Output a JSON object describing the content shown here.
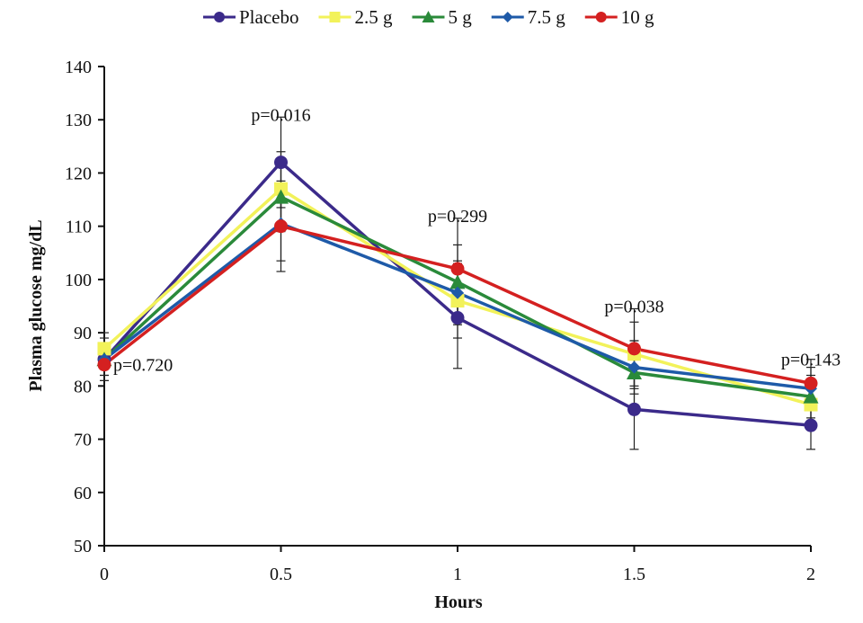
{
  "chart_data": {
    "type": "line",
    "title": "",
    "xlabel": "Hours",
    "ylabel": "Plasma glucose mg/dL",
    "x": [
      0,
      0.5,
      1,
      1.5,
      2
    ],
    "x_tick_labels": [
      "0",
      "0.5",
      "1",
      "1.5",
      "2"
    ],
    "y_tick_labels": [
      "50",
      "60",
      "70",
      "80",
      "90",
      "100",
      "110",
      "120",
      "130",
      "140"
    ],
    "xlim": [
      0,
      2
    ],
    "ylim": [
      50,
      140
    ],
    "grid": false,
    "legend_position": "top-center",
    "series": [
      {
        "name": "Placebo",
        "color": "#3b2a8a",
        "marker": "circle",
        "values": [
          85,
          122,
          92.8,
          75.6,
          72.6
        ],
        "error": [
          4,
          8.5,
          9.5,
          7.5,
          4.5
        ]
      },
      {
        "name": "2.5 g",
        "color": "#f2f25a",
        "marker": "square",
        "values": [
          87,
          117,
          96,
          86,
          76.5
        ],
        "error": [
          3,
          7,
          7,
          6,
          4
        ]
      },
      {
        "name": "5 g",
        "color": "#2a8a3a",
        "marker": "triangle",
        "values": [
          85,
          115.5,
          99.5,
          82.5,
          78
        ],
        "error": [
          3,
          6.5,
          7,
          6,
          4
        ]
      },
      {
        "name": "7.5 g",
        "color": "#1e5aa8",
        "marker": "diamond",
        "values": [
          85,
          110.5,
          97.5,
          83.5,
          79.5
        ],
        "error": [
          3,
          7,
          6,
          5,
          4
        ]
      },
      {
        "name": "10 g",
        "color": "#d42020",
        "marker": "circle",
        "values": [
          84,
          110,
          102,
          87,
          80.5
        ],
        "error": [
          3,
          8.5,
          9.5,
          7.5,
          4.5
        ]
      }
    ],
    "annotations": [
      {
        "text": "p=0.720",
        "x": 0,
        "y": 84
      },
      {
        "text": "p=0.016",
        "x": 0.5,
        "y": 131
      },
      {
        "text": "p=0.299",
        "x": 1,
        "y": 112
      },
      {
        "text": "p=0.038",
        "x": 1.5,
        "y": 95
      },
      {
        "text": "p=0.143",
        "x": 2,
        "y": 85
      }
    ]
  }
}
